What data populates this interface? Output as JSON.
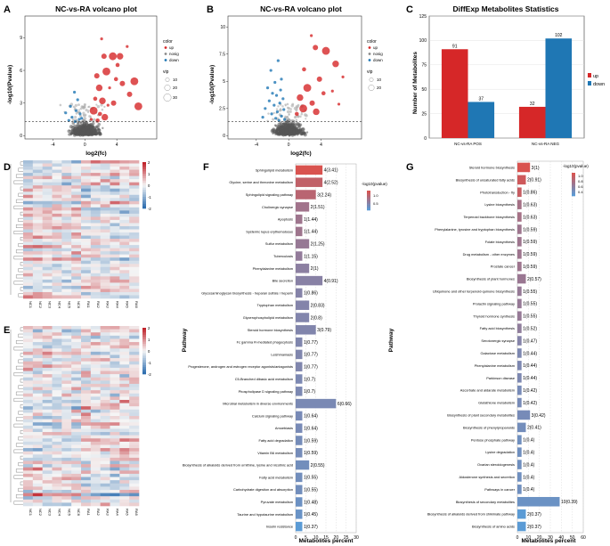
{
  "colors": {
    "up": "#d62728",
    "down": "#1f77b4",
    "nosig": "#888888",
    "panelF_high": "#d9534f",
    "panelF_low": "#5b9bd5",
    "panelG_high": "#d9534f",
    "panelG_low": "#5b9bd5"
  },
  "panel_letters": [
    "A",
    "B",
    "C",
    "D",
    "E",
    "F",
    "G"
  ],
  "chart_data": [
    {
      "id": "A",
      "type": "scatter",
      "title": "NC-vs-RA volcano plot",
      "xlabel": "log2(fc)",
      "ylabel": "-log10(Pvalue)",
      "xticks": [
        -4,
        0,
        4
      ],
      "yticks": [
        0,
        3,
        6,
        9
      ],
      "xlim": [
        -7.5,
        9
      ],
      "ylim": [
        -0.3,
        11
      ],
      "threshold": 1.3,
      "legend": {
        "color_title": "color",
        "color_items": [
          "up",
          "nosig",
          "down"
        ],
        "vip_title": "vip",
        "vip_items": [
          "10",
          "20",
          "30"
        ]
      },
      "highlights": {
        "up": [
          [
            2.1,
            8.9
          ],
          [
            2.4,
            7.3
          ],
          [
            3.5,
            7.3
          ],
          [
            4.1,
            6.5
          ],
          [
            4.4,
            7.3
          ],
          [
            5.3,
            8.2
          ],
          [
            1.5,
            5.5
          ],
          [
            2.7,
            5.9
          ],
          [
            3.9,
            5.2
          ],
          [
            1.8,
            4.4
          ],
          [
            3.1,
            4.4
          ],
          [
            4.7,
            4.8
          ],
          [
            6.2,
            5.0
          ],
          [
            1.3,
            3.4
          ],
          [
            2.2,
            3.2
          ],
          [
            2.9,
            2.8
          ],
          [
            3.6,
            3.0
          ],
          [
            1.1,
            2.3
          ],
          [
            1.9,
            2.0
          ],
          [
            2.5,
            1.7
          ],
          [
            0.8,
            1.5
          ],
          [
            5.6,
            3.8
          ],
          [
            6.7,
            2.7
          ],
          [
            1.6,
            1.4
          ]
        ],
        "down": [
          [
            -1.3,
            4.0
          ],
          [
            -0.9,
            3.3
          ],
          [
            -1.8,
            2.7
          ],
          [
            -1.1,
            2.3
          ],
          [
            -0.6,
            2.0
          ],
          [
            -2.4,
            2.1
          ],
          [
            -1.6,
            1.7
          ],
          [
            -0.7,
            1.5
          ],
          [
            -2.0,
            1.4
          ],
          [
            -1.2,
            1.3
          ],
          [
            -0.4,
            1.6
          ]
        ]
      }
    },
    {
      "id": "B",
      "type": "scatter",
      "title": "NC-vs-RA volcano plot",
      "xlabel": "log2(fc)",
      "ylabel": "-log10(Pvalue)",
      "xticks": [
        -4,
        0,
        4
      ],
      "yticks": [
        0.0,
        2.5,
        5.0,
        7.5,
        10.0
      ],
      "xlim": [
        -7.5,
        9
      ],
      "ylim": [
        -0.3,
        11
      ],
      "threshold": 1.3,
      "legend": {
        "color_title": "color",
        "color_items": [
          "up",
          "nosig",
          "down"
        ],
        "vip_title": "vip",
        "vip_items": [
          "10",
          "20"
        ]
      },
      "highlights": {
        "up": [
          [
            2.8,
            9.2
          ],
          [
            3.3,
            8.1
          ],
          [
            4.6,
            7.8
          ],
          [
            1.9,
            6.1
          ],
          [
            5.8,
            6.6
          ],
          [
            6.7,
            5.4
          ],
          [
            3.8,
            5.2
          ],
          [
            2.3,
            4.4
          ],
          [
            4.3,
            3.9
          ],
          [
            1.4,
            3.5
          ],
          [
            5.4,
            4.1
          ],
          [
            2.9,
            3.0
          ],
          [
            1.8,
            2.5
          ],
          [
            1.0,
            2.0
          ],
          [
            3.4,
            2.2
          ],
          [
            6.2,
            2.9
          ]
        ],
        "down": [
          [
            -1.3,
            6.9
          ],
          [
            -2.2,
            6.0
          ],
          [
            -0.9,
            5.2
          ],
          [
            -1.7,
            4.9
          ],
          [
            -2.6,
            4.4
          ],
          [
            -1.0,
            4.2
          ],
          [
            -2.0,
            3.9
          ],
          [
            -1.5,
            3.7
          ],
          [
            -0.7,
            3.4
          ],
          [
            -2.4,
            3.2
          ],
          [
            -1.1,
            3.0
          ],
          [
            -1.8,
            2.8
          ],
          [
            -2.9,
            2.5
          ],
          [
            -0.6,
            2.4
          ],
          [
            -1.4,
            2.2
          ],
          [
            -2.1,
            2.0
          ],
          [
            -0.9,
            1.8
          ],
          [
            -1.6,
            1.6
          ],
          [
            -3.2,
            1.7
          ],
          [
            -0.5,
            1.5
          ],
          [
            -1.2,
            1.4
          ]
        ]
      }
    },
    {
      "id": "C",
      "type": "bar",
      "title": "DiffExp Metabolites Statistics",
      "categories": [
        "NC-vs-RA POS",
        "NC-vs-RA NEG"
      ],
      "series": [
        {
          "name": "up",
          "values": [
            91,
            32
          ]
        },
        {
          "name": "down",
          "values": [
            37,
            102
          ]
        }
      ],
      "ylabel": "Number of Metabolites",
      "yticks": [
        0,
        25,
        50,
        75,
        100,
        125
      ],
      "ylim": [
        0,
        125
      ]
    },
    {
      "id": "D",
      "type": "heatmap",
      "columns": [
        "NC1",
        "NC2",
        "NC3",
        "NC4",
        "NC5",
        "NC6",
        "RA1",
        "RA2",
        "RA3",
        "RA4",
        "RA5",
        "RA6"
      ],
      "scale": {
        "ticks": [
          "2",
          "1",
          "0",
          "-1",
          "-2"
        ]
      }
    },
    {
      "id": "E",
      "type": "heatmap",
      "columns": [
        "NC1",
        "NC2",
        "NC3",
        "NC4",
        "NC5",
        "NC6",
        "RA1",
        "RA2",
        "RA3",
        "RA4",
        "RA5",
        "RA6"
      ],
      "scale": {
        "ticks": [
          "2",
          "1",
          "0",
          "-1",
          "-2"
        ]
      }
    },
    {
      "id": "F",
      "type": "bar",
      "categories": [
        "Sphingolipid metabolism",
        "Glycine, serine and threonine metabolism",
        "Sphingolipid signaling pathway",
        "Cholinergic synapse",
        "Apoptosis",
        "Systemic lupus erythematosus",
        "Sulfur metabolism",
        "Tuberculosis",
        "Phenylalanine metabolism",
        "Bile secretion",
        "Glycosaminoglycan biosynthesis - heparan sulfate / heparin",
        "Tryptophan metabolism",
        "Glycerophospholipid metabolism",
        "Steroid hormone biosynthesis",
        "Fc gamma R-mediated phagocytosis",
        "Leishmaniasis",
        "Progesterone, androgen and estrogen receptor agonists/antagonists",
        "C5-Branched dibasic acid metabolism",
        "Phospholipase D signaling pathway",
        "Microbial metabolism in diverse environments",
        "Calcium signaling pathway",
        "Amoebiasis",
        "Fatty acid degradation",
        "Vitamin B6 metabolism",
        "Biosynthesis of alkaloids derived from ornithine, lysine and nicotinic acid",
        "Fatty acid metabolism",
        "Carbohydrate digestion and absorption",
        "Pyruvate metabolism",
        "Taurine and hypotaurine metabolism",
        "Insulin resistance"
      ],
      "labels": [
        "4(3.41)",
        "4(2.52)",
        "3(2.24)",
        "2(1.51)",
        "1(1.44)",
        "1(1.44)",
        "2(1.25)",
        "1(1.15)",
        "2(1)",
        "4(0.91)",
        "1(0.86)",
        "2(0.83)",
        "2(0.8)",
        "3(0.79)",
        "1(0.77)",
        "1(0.77)",
        "1(0.77)",
        "1(0.7)",
        "1(0.7)",
        "6(0.66)",
        "1(0.64)",
        "1(0.64)",
        "1(0.59)",
        "1(0.59)",
        "2(0.55)",
        "1(0.55)",
        "1(0.55)",
        "1(0.48)",
        "1(0.45)",
        "1(0.37)"
      ],
      "values": [
        13.3,
        13.3,
        10,
        6.7,
        3.3,
        3.3,
        6.7,
        3.3,
        6.7,
        13.3,
        3.3,
        6.7,
        6.7,
        10,
        3.3,
        3.3,
        3.3,
        3.3,
        3.3,
        20,
        3.3,
        3.3,
        3.3,
        3.3,
        6.7,
        3.3,
        3.3,
        3.3,
        3.3,
        3.3
      ],
      "color_values": [
        3.41,
        2.52,
        2.24,
        1.51,
        1.44,
        1.44,
        1.25,
        1.15,
        1,
        0.91,
        0.86,
        0.83,
        0.8,
        0.79,
        0.77,
        0.77,
        0.77,
        0.7,
        0.7,
        0.66,
        0.64,
        0.64,
        0.59,
        0.59,
        0.55,
        0.55,
        0.55,
        0.48,
        0.45,
        0.37
      ],
      "xlabel": "Metabolites percent",
      "xticks": [
        0,
        5,
        10,
        15,
        20,
        25,
        30
      ],
      "xlim": [
        0,
        30
      ],
      "legend": {
        "title": "-log10(pvalue)",
        "ticks": [
          "1.0",
          "0.5"
        ]
      }
    },
    {
      "id": "G",
      "type": "bar",
      "categories": [
        "Steroid hormone biosynthesis",
        "Biosynthesis of unsaturated fatty acids",
        "Phototransduction - fly",
        "Lysine biosynthesis",
        "Terpenoid backbone biosynthesis",
        "Phenylalanine, tyrosine and tryptophan biosynthesis",
        "Folate biosynthesis",
        "Drug metabolism - other enzymes",
        "Prostate cancer",
        "Biosynthesis of plant hormones",
        "Ubiquinone and other terpenoid-quinone biosynthesis",
        "Prolactin signaling pathway",
        "Thyroid hormone synthesis",
        "Fatty acid biosynthesis",
        "Serotonergic synapse",
        "Galactose metabolism",
        "Phenylalanine metabolism",
        "Parkinson disease",
        "Ascorbate and aldarate metabolism",
        "Glutathione metabolism",
        "Biosynthesis of plant secondary metabolites",
        "Biosynthesis of phenylpropanoids",
        "Pentose phosphate pathway",
        "Lysine degradation",
        "Ovarian steroidogenesis",
        "Aldosterone synthesis and secretion",
        "Pathways in cancer",
        "Biosynthesis of secondary metabolites",
        "Biosynthesis of alkaloids derived from shikimate pathway",
        "Biosynthesis of amino acids"
      ],
      "labels": [
        "3(1)",
        "2(0.91)",
        "1(0.86)",
        "1(0.63)",
        "1(0.63)",
        "1(0.59)",
        "1(0.59)",
        "1(0.59)",
        "1(0.59)",
        "2(0.57)",
        "1(0.55)",
        "1(0.55)",
        "1(0.55)",
        "1(0.52)",
        "1(0.47)",
        "1(0.44)",
        "1(0.44)",
        "1(0.44)",
        "1(0.42)",
        "1(0.42)",
        "3(0.42)",
        "2(0.41)",
        "1(0.4)",
        "1(0.4)",
        "1(0.4)",
        "1(0.4)",
        "1(0.4)",
        "10(0.39)",
        "2(0.37)",
        "2(0.37)"
      ],
      "values": [
        11.5,
        7.7,
        3.8,
        3.8,
        3.8,
        3.8,
        3.8,
        3.8,
        3.8,
        7.7,
        3.8,
        3.8,
        3.8,
        3.8,
        3.8,
        3.8,
        3.8,
        3.8,
        3.8,
        3.8,
        11.5,
        7.7,
        3.8,
        3.8,
        3.8,
        3.8,
        3.8,
        38.5,
        7.7,
        7.7
      ],
      "color_values": [
        1,
        0.91,
        0.86,
        0.63,
        0.63,
        0.59,
        0.59,
        0.59,
        0.59,
        0.57,
        0.55,
        0.55,
        0.55,
        0.52,
        0.47,
        0.44,
        0.44,
        0.44,
        0.42,
        0.42,
        0.42,
        0.41,
        0.4,
        0.4,
        0.4,
        0.4,
        0.4,
        0.39,
        0.37,
        0.37
      ],
      "xlabel": "Metabolites percent",
      "ylabel": "Pathway",
      "xticks": [
        0,
        10,
        20,
        30,
        40,
        50,
        60
      ],
      "xlim": [
        0,
        60
      ],
      "legend": {
        "title": "-log10(pvalue)",
        "ticks": [
          "1.0",
          "0.8",
          "0.6",
          "0.4"
        ]
      }
    }
  ]
}
